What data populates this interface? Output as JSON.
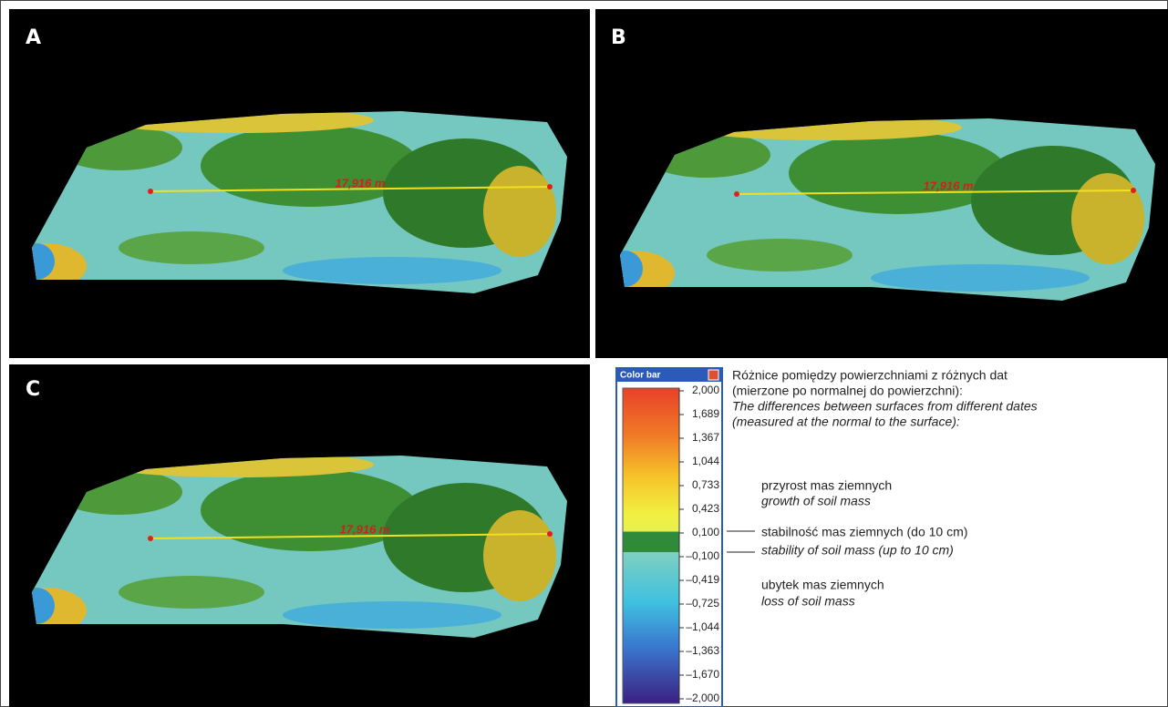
{
  "panels": [
    {
      "label": "A",
      "measurement": "17,916 m"
    },
    {
      "label": "B",
      "measurement": "17,916 m"
    },
    {
      "label": "C",
      "measurement": "17,916 m"
    }
  ],
  "color_bar": {
    "title": "Color bar",
    "ticks": [
      "2,000",
      "1,689",
      "1,367",
      "1,044",
      "0,733",
      "0,423",
      "0,100",
      "–0,100",
      "–0,419",
      "–0,725",
      "–1,044",
      "–1,363",
      "–1,670",
      "–2,000"
    ]
  },
  "description": {
    "lines": [
      "Różnice pomiędzy powierzchniami z różnych dat",
      "(mierzone po normalnej do powierzchni):",
      "The differences between surfaces from different dates",
      "(measured at the normal to the surface):"
    ]
  },
  "legend": [
    {
      "polish": "przyrost mas ziemnych",
      "english": "growth of soil mass"
    },
    {
      "polish": "stabilność mas ziemnych (do 10 cm)",
      "english": "stability of soil mass (up to 10 cm)"
    },
    {
      "polish": "ubytek mas ziemnych",
      "english": "loss of soil mass"
    }
  ]
}
